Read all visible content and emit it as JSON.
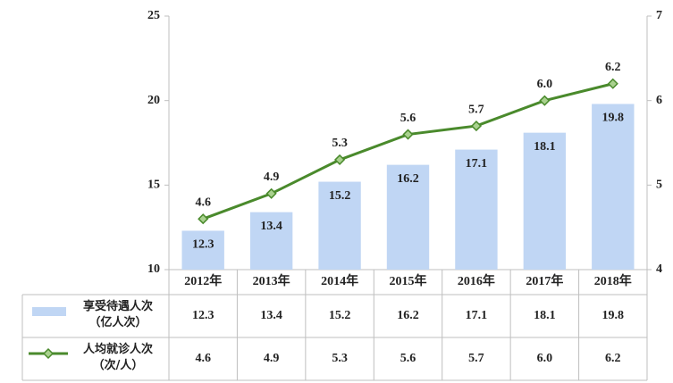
{
  "chart_data": {
    "type": "bar_line",
    "categories": [
      "2012年",
      "2013年",
      "2014年",
      "2015年",
      "2016年",
      "2017年",
      "2018年"
    ],
    "series": [
      {
        "name": "享受待遇人次\n（亿人次）",
        "type": "bar",
        "color": "#c0d6f4",
        "values": [
          12.3,
          13.4,
          15.2,
          16.2,
          17.1,
          18.1,
          19.8
        ]
      },
      {
        "name": "人均就诊人次\n（次/人）",
        "type": "line",
        "axis": "y2",
        "color": "#4a8a2c",
        "values": [
          4.6,
          4.9,
          5.3,
          5.6,
          5.7,
          6.0,
          6.2
        ],
        "value_labels": [
          "4.6",
          "4.9",
          "5.3",
          "5.6",
          "5.7",
          "6.0",
          "6.2"
        ]
      }
    ],
    "ylim": [
      10,
      25
    ],
    "yticks": [
      10,
      15,
      20,
      25
    ],
    "y2lim": [
      4,
      7
    ],
    "y2ticks": [
      4,
      5,
      6,
      7
    ],
    "data_table": true
  }
}
